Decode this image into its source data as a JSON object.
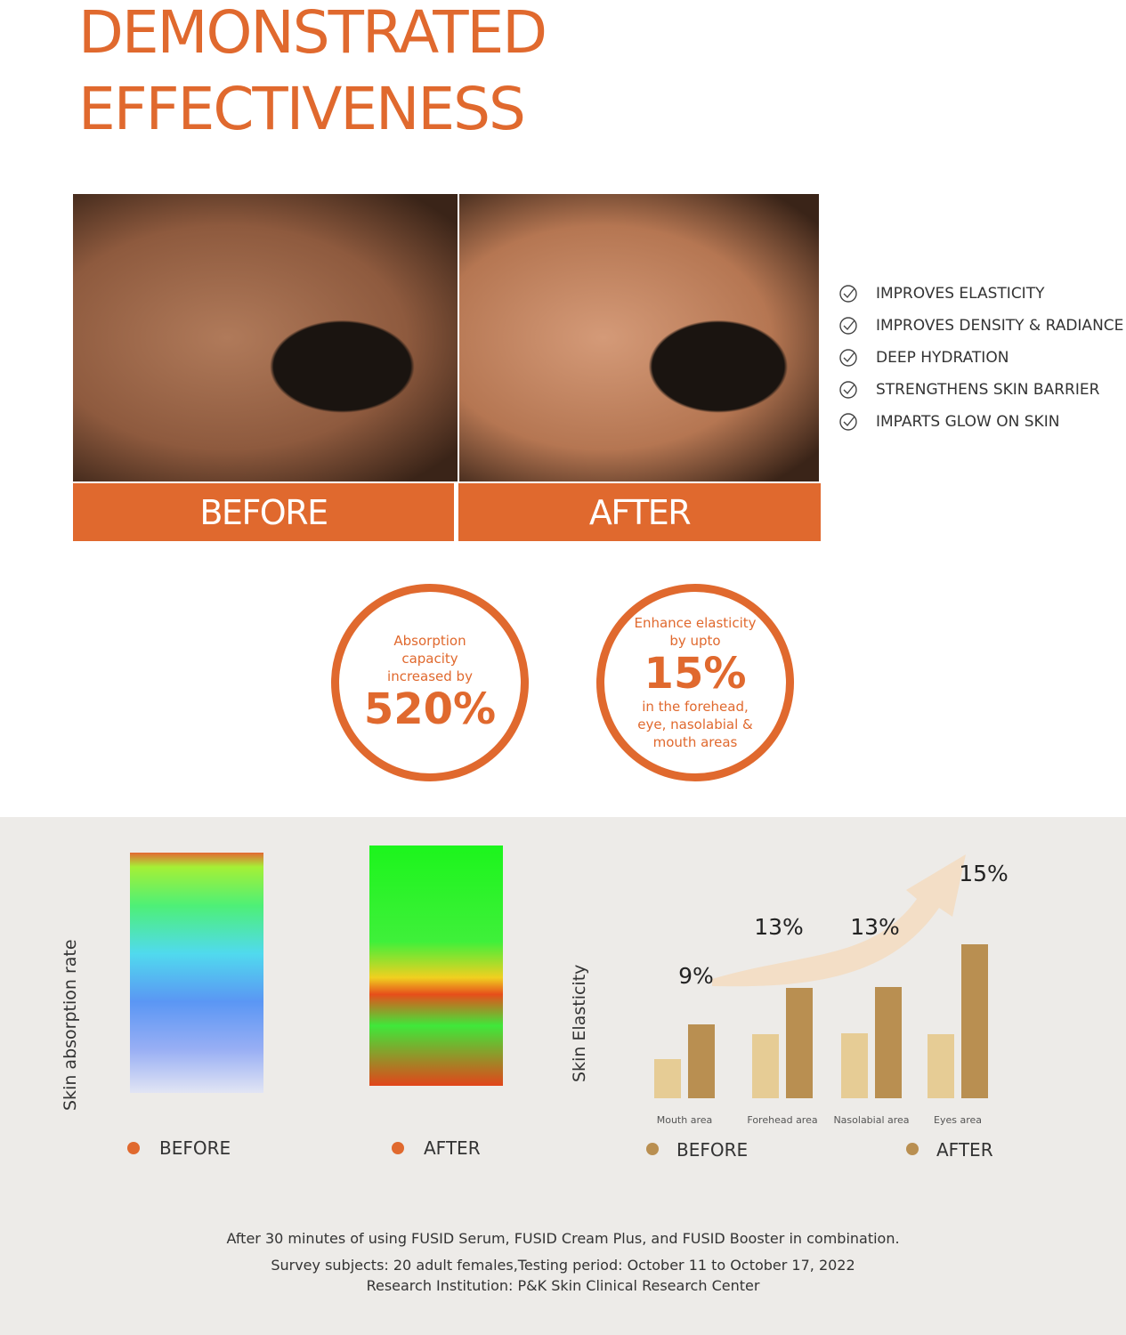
{
  "title_lines": [
    "DEMONSTRATED",
    "EFFECTIVENESS"
  ],
  "photos": {
    "before_label": "BEFORE",
    "after_label": "AFTER"
  },
  "benefits": [
    "IMPROVES ELASTICITY",
    "IMPROVES DENSITY & RADIANCE",
    "DEEP HYDRATION",
    "STRENGTHENS SKIN BARRIER",
    "IMPARTS GLOW ON SKIN"
  ],
  "stats": [
    {
      "pre": "Absorption capacity increased by",
      "value": "520%",
      "post": ""
    },
    {
      "pre": "Enhance elasticity by upto",
      "value": "15%",
      "post": "in the forehead, eye, nasolabial & mouth areas"
    }
  ],
  "absorption": {
    "axis_label": "Skin absorption rate",
    "before_label": "BEFORE",
    "after_label": "AFTER",
    "dot_color": "#e0692e"
  },
  "chart_data": {
    "type": "bar",
    "ylabel": "Skin Elasticity",
    "categories": [
      "Mouth area",
      "Forehead area",
      "Nasolabial area",
      "Eyes area"
    ],
    "series": [
      {
        "name": "BEFORE",
        "values": [
          44,
          72,
          73,
          72
        ],
        "color": "#e6cc95"
      },
      {
        "name": "AFTER",
        "values": [
          83,
          124,
          125,
          173
        ],
        "color": "#b98f51"
      }
    ],
    "annotations": [
      "9%",
      "13%",
      "13%",
      "15%"
    ],
    "legend": [
      "BEFORE",
      "AFTER"
    ],
    "legend_placement": "bottom",
    "legend_dot_color": "#b98f51",
    "grid": false
  },
  "footnotes": [
    "After 30 minutes of using FUSID Serum, FUSID Cream Plus, and FUSID Booster in combination.",
    "Survey subjects: 20 adult females,Testing period: October 11 to October 17, 2022",
    "Research Institution: P&K Skin Clinical Research Center"
  ],
  "colors": {
    "accent": "#e0692e",
    "band": "#edebe8"
  }
}
